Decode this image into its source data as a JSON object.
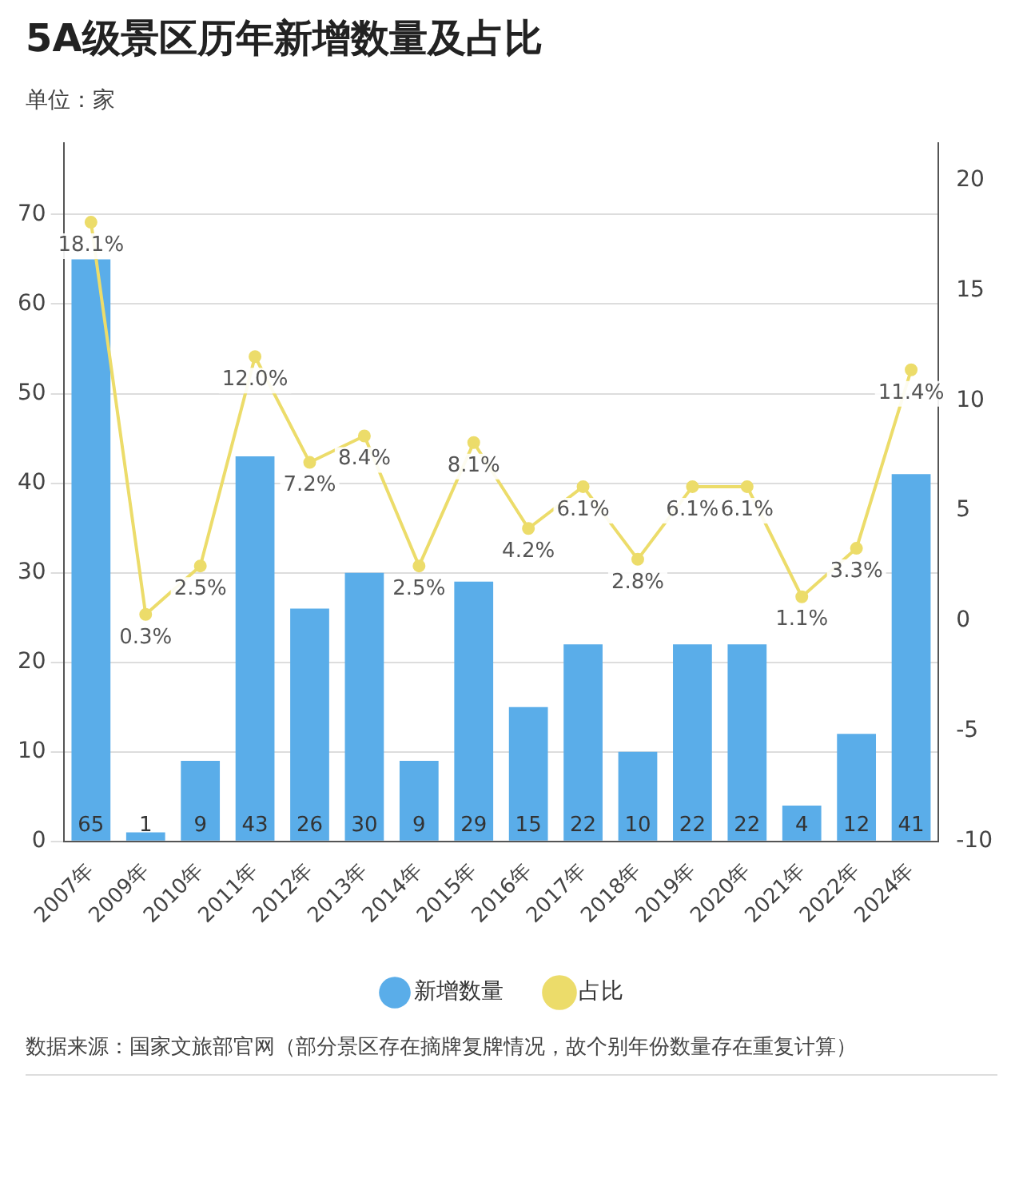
{
  "chart_data": {
    "type": "bar",
    "title": "5A级景区历年新增数量及占比",
    "subtitle": "单位：家",
    "categories": [
      "2007年",
      "2009年",
      "2010年",
      "2011年",
      "2012年",
      "2013年",
      "2014年",
      "2015年",
      "2016年",
      "2017年",
      "2018年",
      "2019年",
      "2020年",
      "2021年",
      "2022年",
      "2024年"
    ],
    "series": [
      {
        "name": "新增数量",
        "color": "#5aade9",
        "values": [
          65,
          1,
          9,
          43,
          26,
          30,
          9,
          29,
          15,
          22,
          10,
          22,
          22,
          4,
          12,
          41
        ]
      },
      {
        "name": "占比",
        "type": "line",
        "axis": "y2",
        "color": "#ecdc6a",
        "values": [
          18.1,
          0.3,
          2.5,
          12.0,
          7.2,
          8.4,
          2.5,
          8.1,
          4.2,
          6.1,
          2.8,
          6.1,
          6.1,
          1.1,
          3.3,
          11.4
        ],
        "value_labels": [
          "18.1%",
          "0.3%",
          "2.5%",
          "12.0%",
          "7.2%",
          "8.4%",
          "2.5%",
          "8.1%",
          "4.2%",
          "6.1%",
          "2.8%",
          "6.1%",
          "6.1%",
          "1.1%",
          "3.3%",
          "11.4%"
        ]
      }
    ],
    "ylim": [
      0,
      78
    ],
    "yticks": [
      0,
      10,
      20,
      30,
      40,
      50,
      60,
      70
    ],
    "y2lim": [
      -10,
      21.7
    ],
    "y2ticks": [
      -10,
      -5,
      0,
      5,
      10,
      15,
      20
    ],
    "grid": "y",
    "legend": "bottom",
    "marker": "circle",
    "line_style": "solid",
    "data_labels": true,
    "annotations": [
      "数据来源：国家文旅部官网（部分景区存在摘牌复牌情况，故个别年份数量存在重复计算）"
    ]
  }
}
